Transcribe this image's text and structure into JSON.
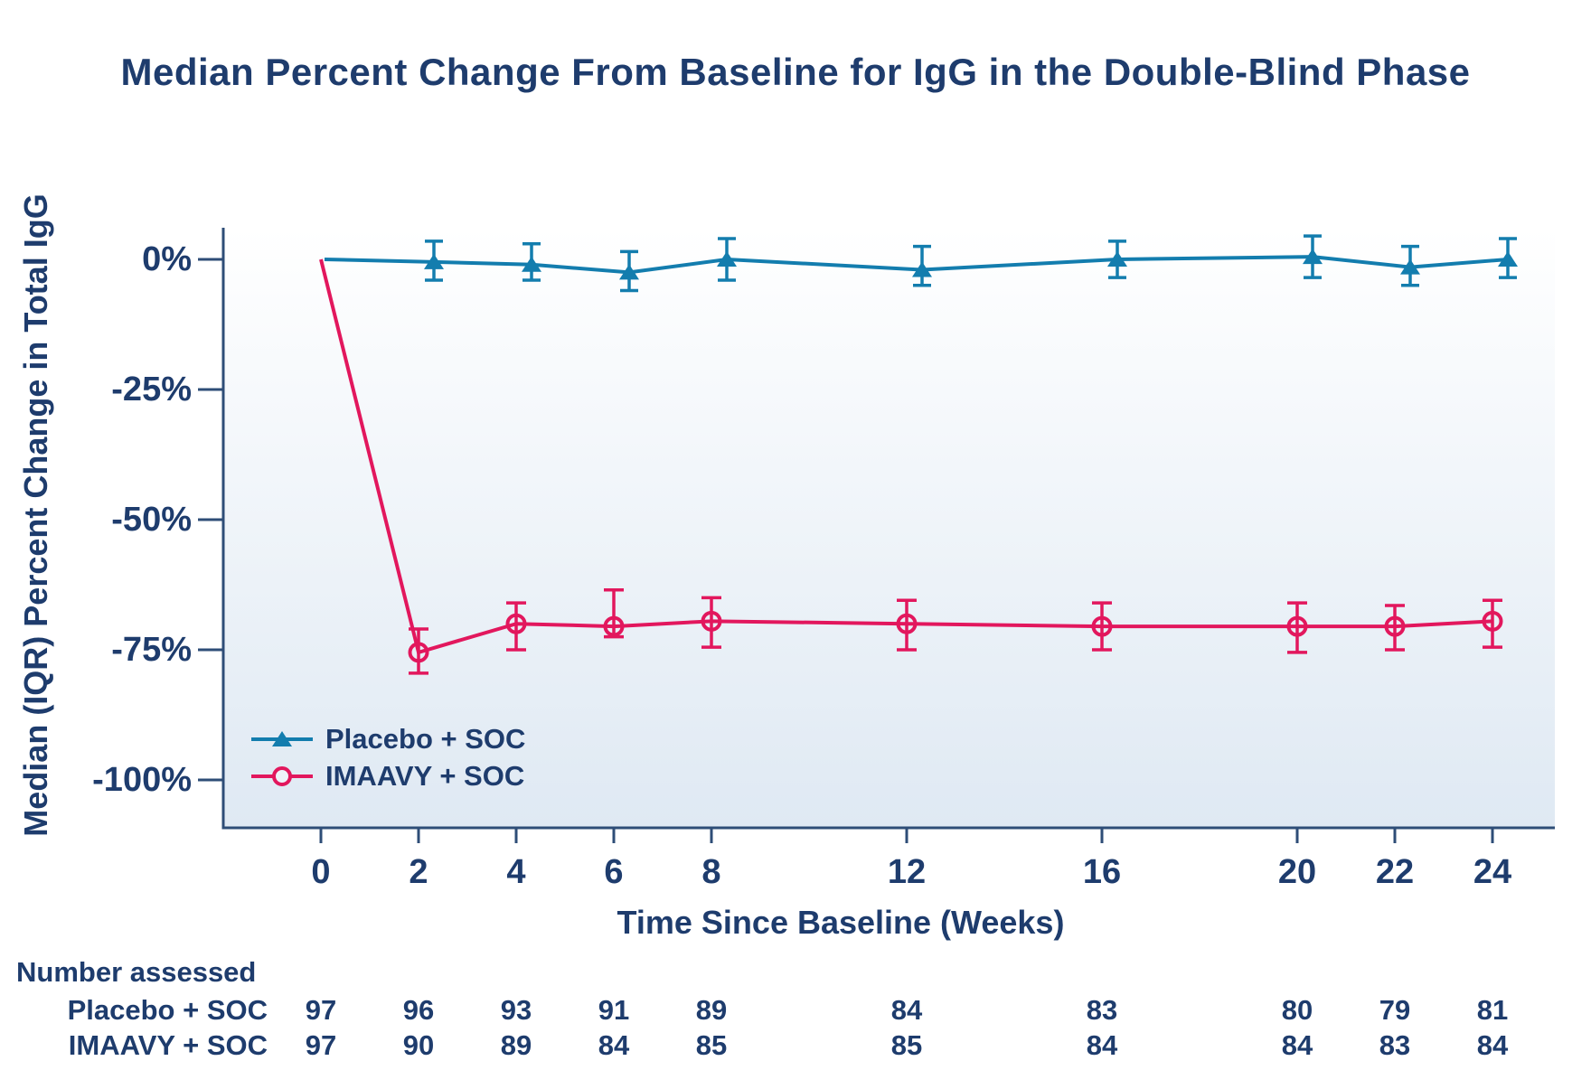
{
  "colors": {
    "navy_text": "#1e3c6d",
    "axis": "#2e4d77",
    "placebo_blue": "#137dae",
    "imaavy_pink": "#e2175d",
    "plot_bg_top": "#ffffff",
    "plot_bg_bottom": "#dfe9f3"
  },
  "chart_data": {
    "type": "line",
    "title": "Median Percent Change From Baseline for IgG in the Double-Blind Phase",
    "xlabel": "Time Since Baseline (Weeks)",
    "ylabel": "Median (IQR) Percent Change in Total IgG",
    "x": [
      0,
      2,
      4,
      6,
      8,
      12,
      16,
      20,
      22,
      24
    ],
    "x_tick_labels": [
      "0",
      "2",
      "4",
      "6",
      "8",
      "12",
      "16",
      "20",
      "22",
      "24"
    ],
    "y_tick_labels": [
      "0%",
      "-25%",
      "-50%",
      "-75%",
      "-100%"
    ],
    "y_tick_values": [
      0,
      -25,
      -50,
      -75,
      -100
    ],
    "ylim": [
      -110,
      6
    ],
    "xlim": [
      -2,
      25.3
    ],
    "grid": false,
    "legend_position": "lower left",
    "error_bars": "IQR",
    "series": [
      {
        "name": "Placebo + SOC",
        "marker": "filled-triangle",
        "color": "#137dae",
        "medians": [
          0,
          -0.5,
          -1,
          -2.5,
          0,
          -2,
          0,
          0.5,
          -1.5,
          0
        ],
        "iqr_high": [
          null,
          3.5,
          3,
          1.5,
          4,
          2.5,
          3.5,
          4.5,
          2.5,
          4
        ],
        "iqr_low": [
          null,
          -4,
          -4,
          -6,
          -4,
          -5,
          -3.5,
          -3.5,
          -5,
          -3.5
        ]
      },
      {
        "name": "IMAAVY + SOC",
        "marker": "open-circle",
        "color": "#e2175d",
        "medians": [
          0,
          -75.5,
          -70,
          -70.5,
          -69.5,
          -70,
          -70.5,
          -70.5,
          -70.5,
          -69.5
        ],
        "iqr_high": [
          null,
          -71,
          -66,
          -63.5,
          -65,
          -65.5,
          -66,
          -66,
          -66.5,
          -65.5
        ],
        "iqr_low": [
          null,
          -79.5,
          -75,
          -72.5,
          -74.5,
          -75,
          -75,
          -75.5,
          -75,
          -74.5
        ]
      }
    ]
  },
  "number_assessed": {
    "heading": "Number assessed",
    "rows": [
      {
        "label": "Placebo + SOC",
        "values": [
          97,
          96,
          93,
          91,
          89,
          84,
          83,
          80,
          79,
          81
        ]
      },
      {
        "label": "IMAAVY + SOC",
        "values": [
          97,
          90,
          89,
          84,
          85,
          85,
          84,
          84,
          83,
          84
        ]
      }
    ]
  }
}
